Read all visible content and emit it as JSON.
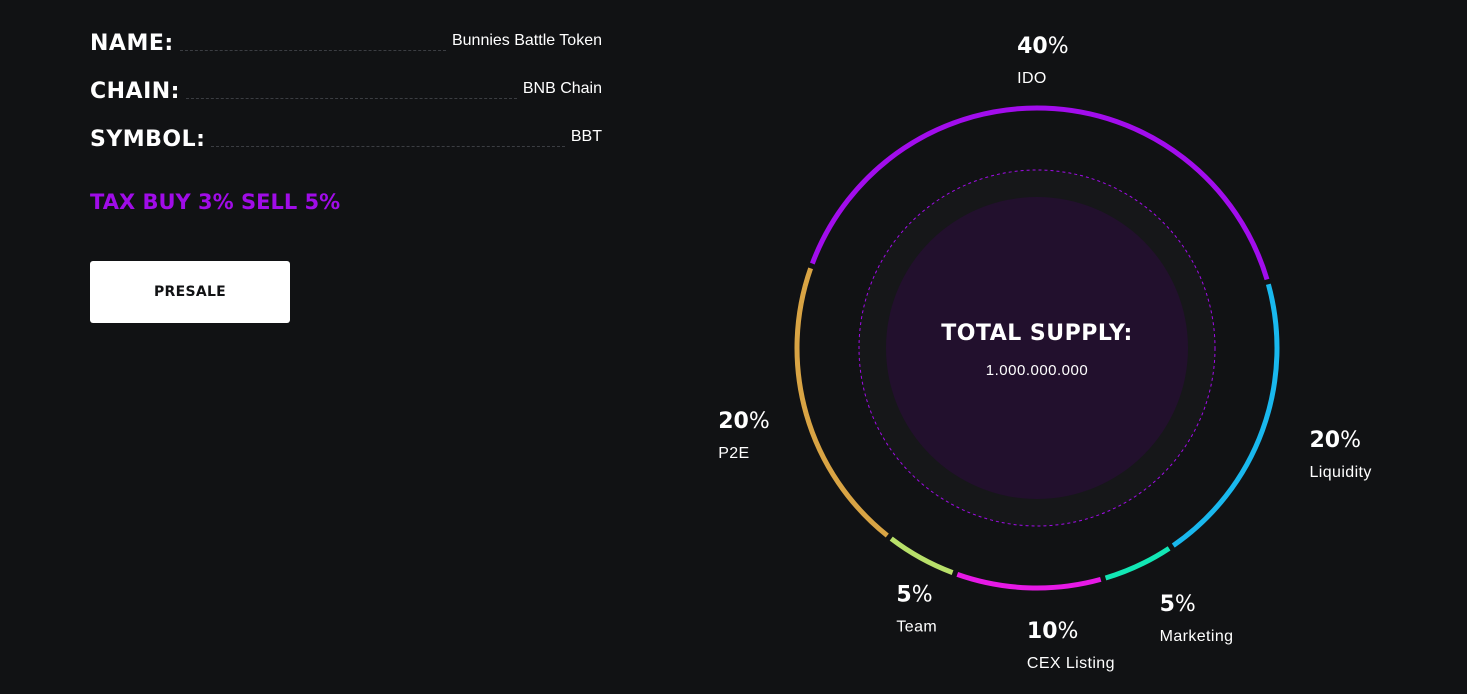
{
  "token": {
    "rows": [
      {
        "label": "NAME:",
        "value": "Bunnies Battle Token"
      },
      {
        "label": "CHAIN:",
        "value": "BNB Chain"
      },
      {
        "label": "SYMBOL:",
        "value": "BBT"
      }
    ],
    "tax": "TAX BUY 3% SELL 5%",
    "presale_label": "PRESALE"
  },
  "chart_data": {
    "type": "pie",
    "center_title": "TOTAL SUPPLY:",
    "center_value": "1.000.000.000",
    "unit": "%",
    "slices": [
      {
        "label": "IDO",
        "value": 40,
        "color": "#a20ded"
      },
      {
        "label": "Liquidity",
        "value": 20,
        "color": "#19b8ee"
      },
      {
        "label": "Marketing",
        "value": 5,
        "color": "#12e7b5"
      },
      {
        "label": "CEX Listing",
        "value": 10,
        "color": "#e619e6"
      },
      {
        "label": "Team",
        "value": 5,
        "color": "#b8e06a"
      },
      {
        "label": "P2E",
        "value": 20,
        "color": "#d9a444"
      }
    ]
  },
  "colors": {
    "background": "#111214",
    "accent": "#a00ce8",
    "center_fill": "#22102d",
    "inner_ring": "#161719"
  }
}
